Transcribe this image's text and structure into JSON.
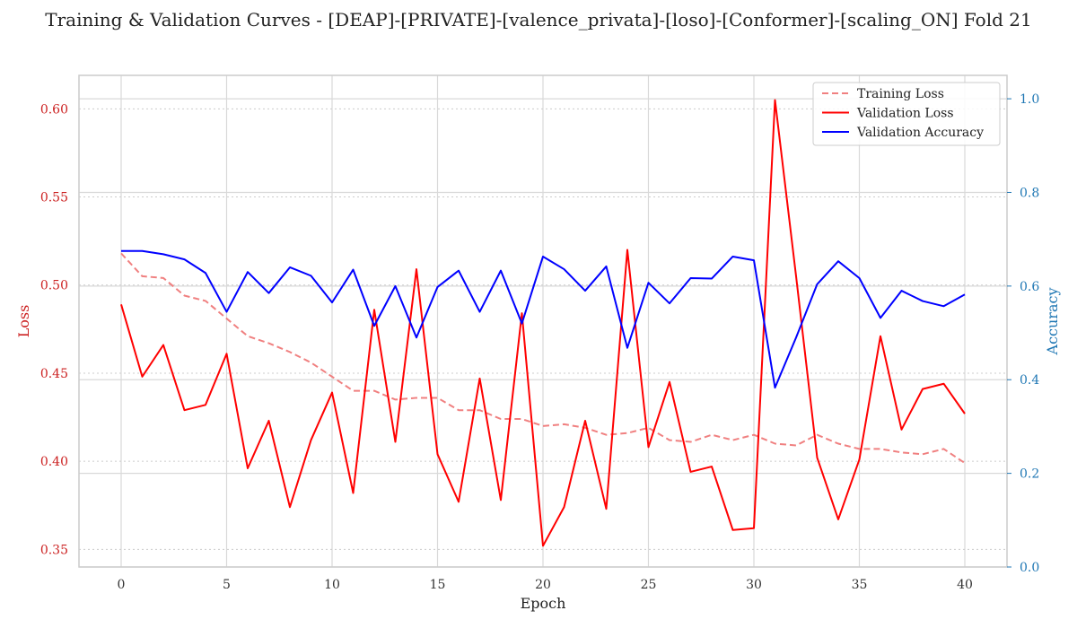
{
  "chart_data": {
    "type": "line",
    "title": "Training & Validation Curves - [DEAP]-[PRIVATE]-[valence_privata]-[loso]-[Conformer]-[scaling_ON] Fold 21",
    "xlabel": "Epoch",
    "ylabel_left": "Loss",
    "ylabel_right": "Accuracy",
    "xlim": [
      -2,
      42
    ],
    "ylim_left": [
      0.34,
      0.619
    ],
    "ylim_right": [
      0.0,
      1.05
    ],
    "x_ticks": [
      0,
      5,
      10,
      15,
      20,
      25,
      30,
      35,
      40
    ],
    "y_ticks_left": [
      0.35,
      0.4,
      0.45,
      0.5,
      0.55,
      0.6
    ],
    "y_ticks_right": [
      0.0,
      0.2,
      0.4,
      0.6,
      0.8,
      1.0
    ],
    "x": [
      0,
      1,
      2,
      3,
      4,
      5,
      6,
      7,
      8,
      9,
      10,
      11,
      12,
      13,
      14,
      15,
      16,
      17,
      18,
      19,
      20,
      21,
      22,
      23,
      24,
      25,
      26,
      27,
      28,
      29,
      30,
      31,
      32,
      33,
      34,
      35,
      36,
      37,
      38,
      39,
      40
    ],
    "grid": true,
    "legend_position": "top-right",
    "series": [
      {
        "name": "Training Loss",
        "axis": "left",
        "style": "dashed",
        "color": "#f08080",
        "values": [
          0.518,
          0.505,
          0.504,
          0.494,
          0.491,
          0.481,
          0.471,
          0.467,
          0.462,
          0.456,
          0.448,
          0.44,
          0.44,
          0.435,
          0.436,
          0.436,
          0.429,
          0.429,
          0.424,
          0.424,
          0.42,
          0.421,
          0.419,
          0.415,
          0.416,
          0.419,
          0.412,
          0.411,
          0.415,
          0.412,
          0.415,
          0.41,
          0.409,
          0.415,
          0.41,
          0.407,
          0.407,
          0.405,
          0.404,
          0.407,
          0.399
        ]
      },
      {
        "name": "Validation Loss",
        "axis": "left",
        "style": "solid",
        "color": "#ff0000",
        "values": [
          0.489,
          0.448,
          0.466,
          0.429,
          0.432,
          0.461,
          0.396,
          0.423,
          0.374,
          0.412,
          0.439,
          0.382,
          0.486,
          0.411,
          0.509,
          0.404,
          0.377,
          0.447,
          0.378,
          0.484,
          0.352,
          0.374,
          0.423,
          0.373,
          0.52,
          0.408,
          0.445,
          0.394,
          0.397,
          0.361,
          0.362,
          0.605,
          0.505,
          0.402,
          0.367,
          0.401,
          0.471,
          0.418,
          0.441,
          0.444,
          0.427
        ]
      },
      {
        "name": "Validation Accuracy",
        "axis": "right",
        "style": "solid",
        "color": "#0000ff",
        "values": [
          0.675,
          0.675,
          0.668,
          0.657,
          0.628,
          0.545,
          0.63,
          0.585,
          0.64,
          0.622,
          0.565,
          0.635,
          0.515,
          0.6,
          0.49,
          0.598,
          0.633,
          0.545,
          0.633,
          0.52,
          0.663,
          0.636,
          0.59,
          0.642,
          0.468,
          0.607,
          0.563,
          0.617,
          0.616,
          0.663,
          0.655,
          0.383,
          0.49,
          0.604,
          0.653,
          0.617,
          0.532,
          0.59,
          0.568,
          0.557,
          0.582
        ]
      }
    ]
  }
}
